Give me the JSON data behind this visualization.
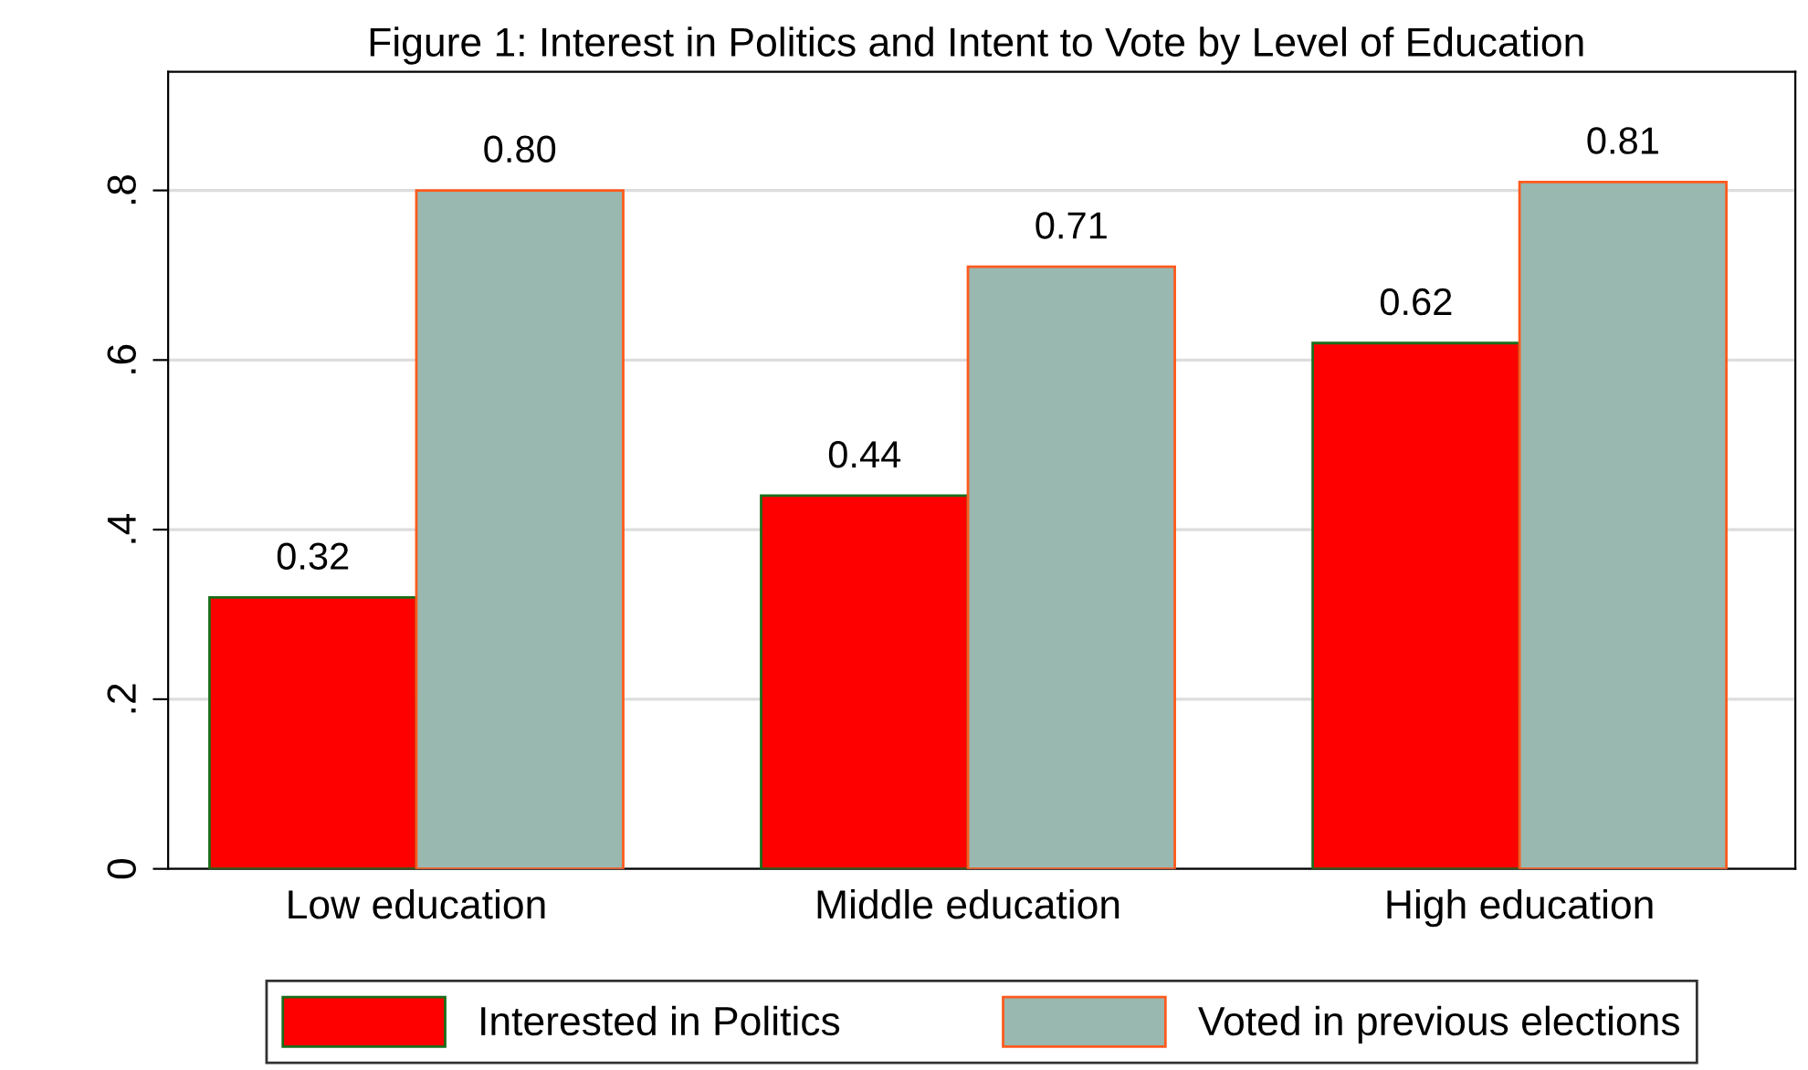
{
  "chart_data": {
    "type": "bar",
    "title": "Figure 1: Interest in Politics and Intent to Vote by Level of Education",
    "categories": [
      "Low education",
      "Middle education",
      "High education"
    ],
    "series": [
      {
        "name": "Interested in Politics",
        "color": "#ff0000",
        "values": [
          0.32,
          0.44,
          0.62
        ],
        "value_labels": [
          "0.32",
          "0.44",
          "0.62"
        ]
      },
      {
        "name": "Voted in previous elections",
        "color": "#98b8b0",
        "values": [
          0.8,
          0.71,
          0.81
        ],
        "value_labels": [
          "0.80",
          "0.71",
          "0.81"
        ]
      }
    ],
    "ylim": [
      0,
      0.94
    ],
    "yticks": [
      {
        "value": 0,
        "label": "0"
      },
      {
        "value": 0.2,
        "label": ".2"
      },
      {
        "value": 0.4,
        "label": ".4"
      },
      {
        "value": 0.6,
        "label": ".6"
      },
      {
        "value": 0.8,
        "label": ".8"
      }
    ],
    "grid": "y",
    "legend": "bottom"
  }
}
